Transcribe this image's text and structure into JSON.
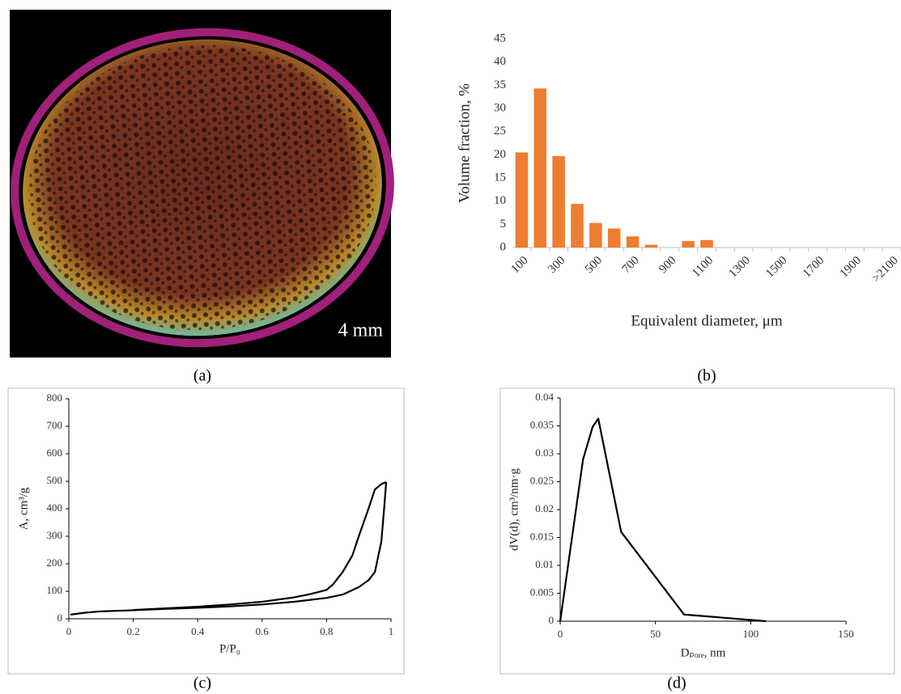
{
  "image": {
    "scale_label": "4 mm",
    "caption": "(a)"
  },
  "chart_data": [
    {
      "type": "bar",
      "caption": "(b)",
      "xlabel": "Equivalent diameter, μm",
      "ylabel": "Volume fraction, %",
      "categories": [
        "100",
        null,
        "300",
        null,
        "500",
        null,
        "700",
        null,
        "900",
        null,
        "1100",
        null,
        "1300",
        null,
        "1500",
        null,
        "1700",
        null,
        "1900",
        null,
        ">2100"
      ],
      "values": [
        20.5,
        34.3,
        19.7,
        9.4,
        5.3,
        4.1,
        2.4,
        0.6,
        0,
        1.4,
        1.6,
        0,
        0,
        0,
        0,
        0,
        0,
        0,
        0,
        0,
        0
      ],
      "color": "#ed7d31",
      "ylim": [
        0,
        45
      ],
      "yticks": [
        0,
        5,
        10,
        15,
        20,
        25,
        30,
        35,
        40,
        45
      ]
    },
    {
      "type": "line",
      "caption": "(c)",
      "xlabel": "P/P₀",
      "ylabel": "A, cm³/g",
      "series": [
        {
          "color": "#000000",
          "x": [
            0.005,
            0.05,
            0.1,
            0.2,
            0.3,
            0.4,
            0.5,
            0.6,
            0.7,
            0.8,
            0.85,
            0.9,
            0.93,
            0.95,
            0.97,
            0.98,
            0.985
          ],
          "values": [
            15,
            22,
            27,
            31,
            36,
            40,
            45,
            52,
            62,
            76,
            88,
            115,
            140,
            170,
            280,
            420,
            497
          ]
        },
        {
          "color": "#000000",
          "x": [
            0.985,
            0.97,
            0.95,
            0.93,
            0.9,
            0.88,
            0.85,
            0.82,
            0.8,
            0.75,
            0.7,
            0.6,
            0.5,
            0.4,
            0.3,
            0.2
          ],
          "values": [
            497,
            490,
            470,
            400,
            300,
            230,
            170,
            125,
            105,
            90,
            78,
            62,
            52,
            44,
            38,
            32
          ]
        }
      ],
      "xlim": [
        0,
        1
      ],
      "xticks": [
        0,
        0.2,
        0.4,
        0.6,
        0.8,
        1
      ],
      "ylim": [
        0,
        800
      ],
      "yticks": [
        0,
        100,
        200,
        300,
        400,
        500,
        600,
        700,
        800
      ]
    },
    {
      "type": "line",
      "caption": "(d)",
      "xlabel": "Dₚₒᵣₑ, nm",
      "ylabel": "dV(d), cm³/nm·g",
      "series": [
        {
          "color": "#000000",
          "x": [
            0,
            12,
            17,
            20,
            32,
            65,
            108
          ],
          "values": [
            0,
            0.029,
            0.0348,
            0.0363,
            0.016,
            0.0012,
            0
          ]
        }
      ],
      "xlim": [
        0,
        150
      ],
      "xticks": [
        0,
        50,
        100,
        150
      ],
      "ylim": [
        0,
        0.04
      ],
      "yticks": [
        0,
        0.005,
        0.01,
        0.015,
        0.02,
        0.025,
        0.03,
        0.035,
        0.04
      ]
    }
  ]
}
